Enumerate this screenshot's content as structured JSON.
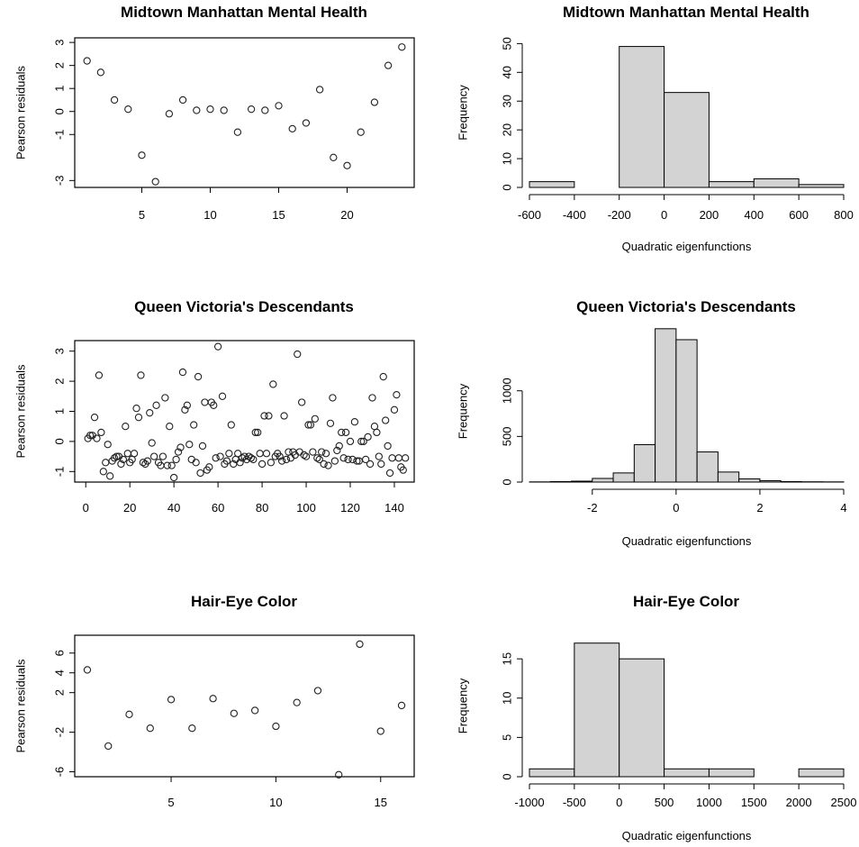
{
  "chart_data": [
    {
      "type": "scatter",
      "title": "Midtown Manhattan Mental Health",
      "ylabel": "Pearson residuals",
      "xlabel": "",
      "xlim": [
        0.1,
        24.9
      ],
      "ylim": [
        -3.3,
        3.2
      ],
      "xticks": [
        5,
        10,
        15,
        20
      ],
      "yticks": [
        -3,
        -1,
        0,
        1,
        2,
        3
      ],
      "points": [
        [
          1,
          2.2
        ],
        [
          2,
          1.7
        ],
        [
          3,
          0.5
        ],
        [
          4,
          0.1
        ],
        [
          5,
          -1.9
        ],
        [
          6,
          -3.05
        ],
        [
          7,
          -0.1
        ],
        [
          8,
          0.5
        ],
        [
          9,
          0.05
        ],
        [
          10,
          0.1
        ],
        [
          11,
          0.05
        ],
        [
          12,
          -0.9
        ],
        [
          13,
          0.1
        ],
        [
          14,
          0.05
        ],
        [
          15,
          0.25
        ],
        [
          16,
          -0.75
        ],
        [
          17,
          -0.5
        ],
        [
          18,
          0.95
        ],
        [
          19,
          -2.0
        ],
        [
          20,
          -2.35
        ],
        [
          21,
          -0.9
        ],
        [
          22,
          0.4
        ],
        [
          23,
          2.0
        ],
        [
          24,
          2.8
        ]
      ]
    },
    {
      "type": "histogram",
      "title": "Midtown Manhattan Mental Health",
      "xlabel": "Quadratic eigenfunctions",
      "ylabel": "Frequency",
      "xlim": [
        -600,
        800
      ],
      "ylim": [
        0,
        52
      ],
      "xticks": [
        -600,
        -400,
        -200,
        0,
        200,
        400,
        600,
        800
      ],
      "yticks": [
        0,
        10,
        20,
        30,
        40,
        50
      ],
      "bins": [
        -600,
        -400,
        -200,
        0,
        200,
        400,
        600,
        800
      ],
      "counts": [
        2,
        0,
        49,
        33,
        2,
        3,
        1
      ]
    },
    {
      "type": "scatter",
      "title": "Queen Victoria's Descendants",
      "ylabel": "Pearson residuals",
      "xlabel": "",
      "xlim": [
        -5,
        149
      ],
      "ylim": [
        -1.35,
        3.35
      ],
      "xticks": [
        0,
        20,
        40,
        60,
        80,
        100,
        120,
        140
      ],
      "yticks": [
        -1,
        0,
        1,
        2,
        3
      ],
      "points": [
        [
          1,
          0.1
        ],
        [
          2,
          0.2
        ],
        [
          3,
          0.2
        ],
        [
          4,
          0.8
        ],
        [
          5,
          0.1
        ],
        [
          6,
          2.2
        ],
        [
          7,
          0.3
        ],
        [
          8,
          -1.0
        ],
        [
          9,
          -0.7
        ],
        [
          10,
          -0.1
        ],
        [
          11,
          -1.15
        ],
        [
          12,
          -0.65
        ],
        [
          13,
          -0.55
        ],
        [
          14,
          -0.5
        ],
        [
          15,
          -0.5
        ],
        [
          16,
          -0.75
        ],
        [
          17,
          -0.6
        ],
        [
          18,
          0.5
        ],
        [
          19,
          -0.4
        ],
        [
          20,
          -0.7
        ],
        [
          21,
          -0.6
        ],
        [
          22,
          -0.4
        ],
        [
          23,
          1.1
        ],
        [
          24,
          0.8
        ],
        [
          25,
          2.2
        ],
        [
          26,
          -0.7
        ],
        [
          27,
          -0.75
        ],
        [
          28,
          -0.65
        ],
        [
          29,
          0.95
        ],
        [
          30,
          -0.05
        ],
        [
          31,
          -0.5
        ],
        [
          32,
          1.2
        ],
        [
          33,
          -0.7
        ],
        [
          34,
          -0.8
        ],
        [
          35,
          -0.5
        ],
        [
          36,
          1.45
        ],
        [
          37,
          -0.8
        ],
        [
          38,
          0.5
        ],
        [
          39,
          -0.8
        ],
        [
          40,
          -1.2
        ],
        [
          41,
          -0.6
        ],
        [
          42,
          -0.35
        ],
        [
          43,
          -0.2
        ],
        [
          44,
          2.3
        ],
        [
          45,
          1.05
        ],
        [
          46,
          1.2
        ],
        [
          47,
          -0.1
        ],
        [
          48,
          -0.6
        ],
        [
          49,
          0.55
        ],
        [
          50,
          -0.7
        ],
        [
          51,
          2.15
        ],
        [
          52,
          -1.05
        ],
        [
          53,
          -0.15
        ],
        [
          54,
          1.3
        ],
        [
          55,
          -0.95
        ],
        [
          56,
          -0.85
        ],
        [
          57,
          1.3
        ],
        [
          58,
          1.2
        ],
        [
          59,
          -0.55
        ],
        [
          60,
          3.15
        ],
        [
          61,
          -0.5
        ],
        [
          62,
          1.5
        ],
        [
          63,
          -0.75
        ],
        [
          64,
          -0.65
        ],
        [
          65,
          -0.4
        ],
        [
          66,
          0.55
        ],
        [
          67,
          -0.75
        ],
        [
          68,
          -0.6
        ],
        [
          69,
          -0.4
        ],
        [
          70,
          -0.7
        ],
        [
          71,
          -0.55
        ],
        [
          72,
          -0.5
        ],
        [
          73,
          -0.6
        ],
        [
          74,
          -0.5
        ],
        [
          75,
          -0.55
        ],
        [
          76,
          -0.6
        ],
        [
          77,
          0.3
        ],
        [
          78,
          0.3
        ],
        [
          79,
          -0.4
        ],
        [
          80,
          -0.75
        ],
        [
          81,
          0.85
        ],
        [
          82,
          -0.4
        ],
        [
          83,
          0.85
        ],
        [
          84,
          -0.7
        ],
        [
          85,
          1.9
        ],
        [
          86,
          -0.5
        ],
        [
          87,
          -0.4
        ],
        [
          88,
          -0.5
        ],
        [
          89,
          -0.65
        ],
        [
          90,
          0.85
        ],
        [
          91,
          -0.6
        ],
        [
          92,
          -0.35
        ],
        [
          93,
          -0.55
        ],
        [
          94,
          -0.35
        ],
        [
          95,
          -0.45
        ],
        [
          96,
          2.9
        ],
        [
          97,
          -0.35
        ],
        [
          98,
          1.3
        ],
        [
          99,
          -0.45
        ],
        [
          100,
          -0.5
        ],
        [
          101,
          0.55
        ],
        [
          102,
          0.55
        ],
        [
          103,
          -0.35
        ],
        [
          104,
          0.75
        ],
        [
          105,
          -0.55
        ],
        [
          106,
          -0.6
        ],
        [
          107,
          -0.35
        ],
        [
          108,
          -0.75
        ],
        [
          109,
          -0.4
        ],
        [
          110,
          -0.8
        ],
        [
          111,
          0.6
        ],
        [
          112,
          1.45
        ],
        [
          113,
          -0.65
        ],
        [
          114,
          -0.3
        ],
        [
          115,
          -0.15
        ],
        [
          116,
          0.3
        ],
        [
          117,
          -0.55
        ],
        [
          118,
          0.3
        ],
        [
          119,
          -0.6
        ],
        [
          120,
          0.0
        ],
        [
          121,
          -0.6
        ],
        [
          122,
          0.65
        ],
        [
          123,
          -0.65
        ],
        [
          124,
          -0.65
        ],
        [
          125,
          0.0
        ],
        [
          126,
          0.0
        ],
        [
          127,
          -0.6
        ],
        [
          128,
          0.15
        ],
        [
          129,
          -0.75
        ],
        [
          130,
          1.45
        ],
        [
          131,
          0.5
        ],
        [
          132,
          0.3
        ],
        [
          133,
          -0.5
        ],
        [
          134,
          -0.75
        ],
        [
          135,
          2.15
        ],
        [
          136,
          0.7
        ],
        [
          137,
          -0.15
        ],
        [
          138,
          -1.05
        ],
        [
          139,
          -0.55
        ],
        [
          140,
          1.05
        ],
        [
          141,
          1.55
        ],
        [
          142,
          -0.55
        ],
        [
          143,
          -0.85
        ],
        [
          144,
          -0.95
        ],
        [
          145,
          -0.55
        ]
      ]
    },
    {
      "type": "histogram",
      "title": "Queen Victoria's Descendants",
      "xlabel": "Quadratic eigenfunctions",
      "ylabel": "Frequency",
      "xlim": [
        -3.5,
        4
      ],
      "ylim": [
        0,
        1550
      ],
      "xticks": [
        -2,
        0,
        2,
        4
      ],
      "yticks": [
        0,
        500,
        1000
      ],
      "bins": [
        -3.5,
        -3,
        -2.5,
        -2,
        -1.5,
        -1,
        -0.5,
        0,
        0.5,
        1,
        1.5,
        2,
        2.5,
        3,
        3.5,
        4
      ],
      "counts": [
        2,
        5,
        10,
        40,
        100,
        410,
        1680,
        1560,
        330,
        110,
        35,
        15,
        5,
        3,
        2
      ]
    },
    {
      "type": "scatter",
      "title": "Hair-Eye Color",
      "ylabel": "Pearson residuals",
      "xlabel": "",
      "xlim": [
        0.4,
        16.6
      ],
      "ylim": [
        -6.5,
        7.8
      ],
      "xticks": [
        5,
        10,
        15
      ],
      "yticks": [
        -6,
        -2,
        2,
        4,
        6
      ],
      "points": [
        [
          1,
          4.3
        ],
        [
          2,
          -3.4
        ],
        [
          3,
          -0.2
        ],
        [
          4,
          -1.6
        ],
        [
          5,
          1.3
        ],
        [
          6,
          -1.6
        ],
        [
          7,
          1.4
        ],
        [
          8,
          -0.1
        ],
        [
          9,
          0.2
        ],
        [
          10,
          -1.4
        ],
        [
          11,
          1.0
        ],
        [
          12,
          2.2
        ],
        [
          13,
          -6.3
        ],
        [
          14,
          6.9
        ],
        [
          15,
          -1.9
        ],
        [
          16,
          0.7
        ]
      ]
    },
    {
      "type": "histogram",
      "title": "Hair-Eye Color",
      "xlabel": "Quadratic eigenfunctions",
      "ylabel": "Frequency",
      "xlim": [
        -1000,
        2500
      ],
      "ylim": [
        0,
        18
      ],
      "xticks": [
        -1000,
        -500,
        0,
        500,
        1000,
        1500,
        2000,
        2500
      ],
      "yticks": [
        0,
        5,
        10,
        15
      ],
      "bins": [
        -1000,
        -500,
        0,
        500,
        1000,
        1500,
        2000,
        2500
      ],
      "counts": [
        1,
        17,
        15,
        1,
        1,
        0,
        1
      ]
    }
  ]
}
